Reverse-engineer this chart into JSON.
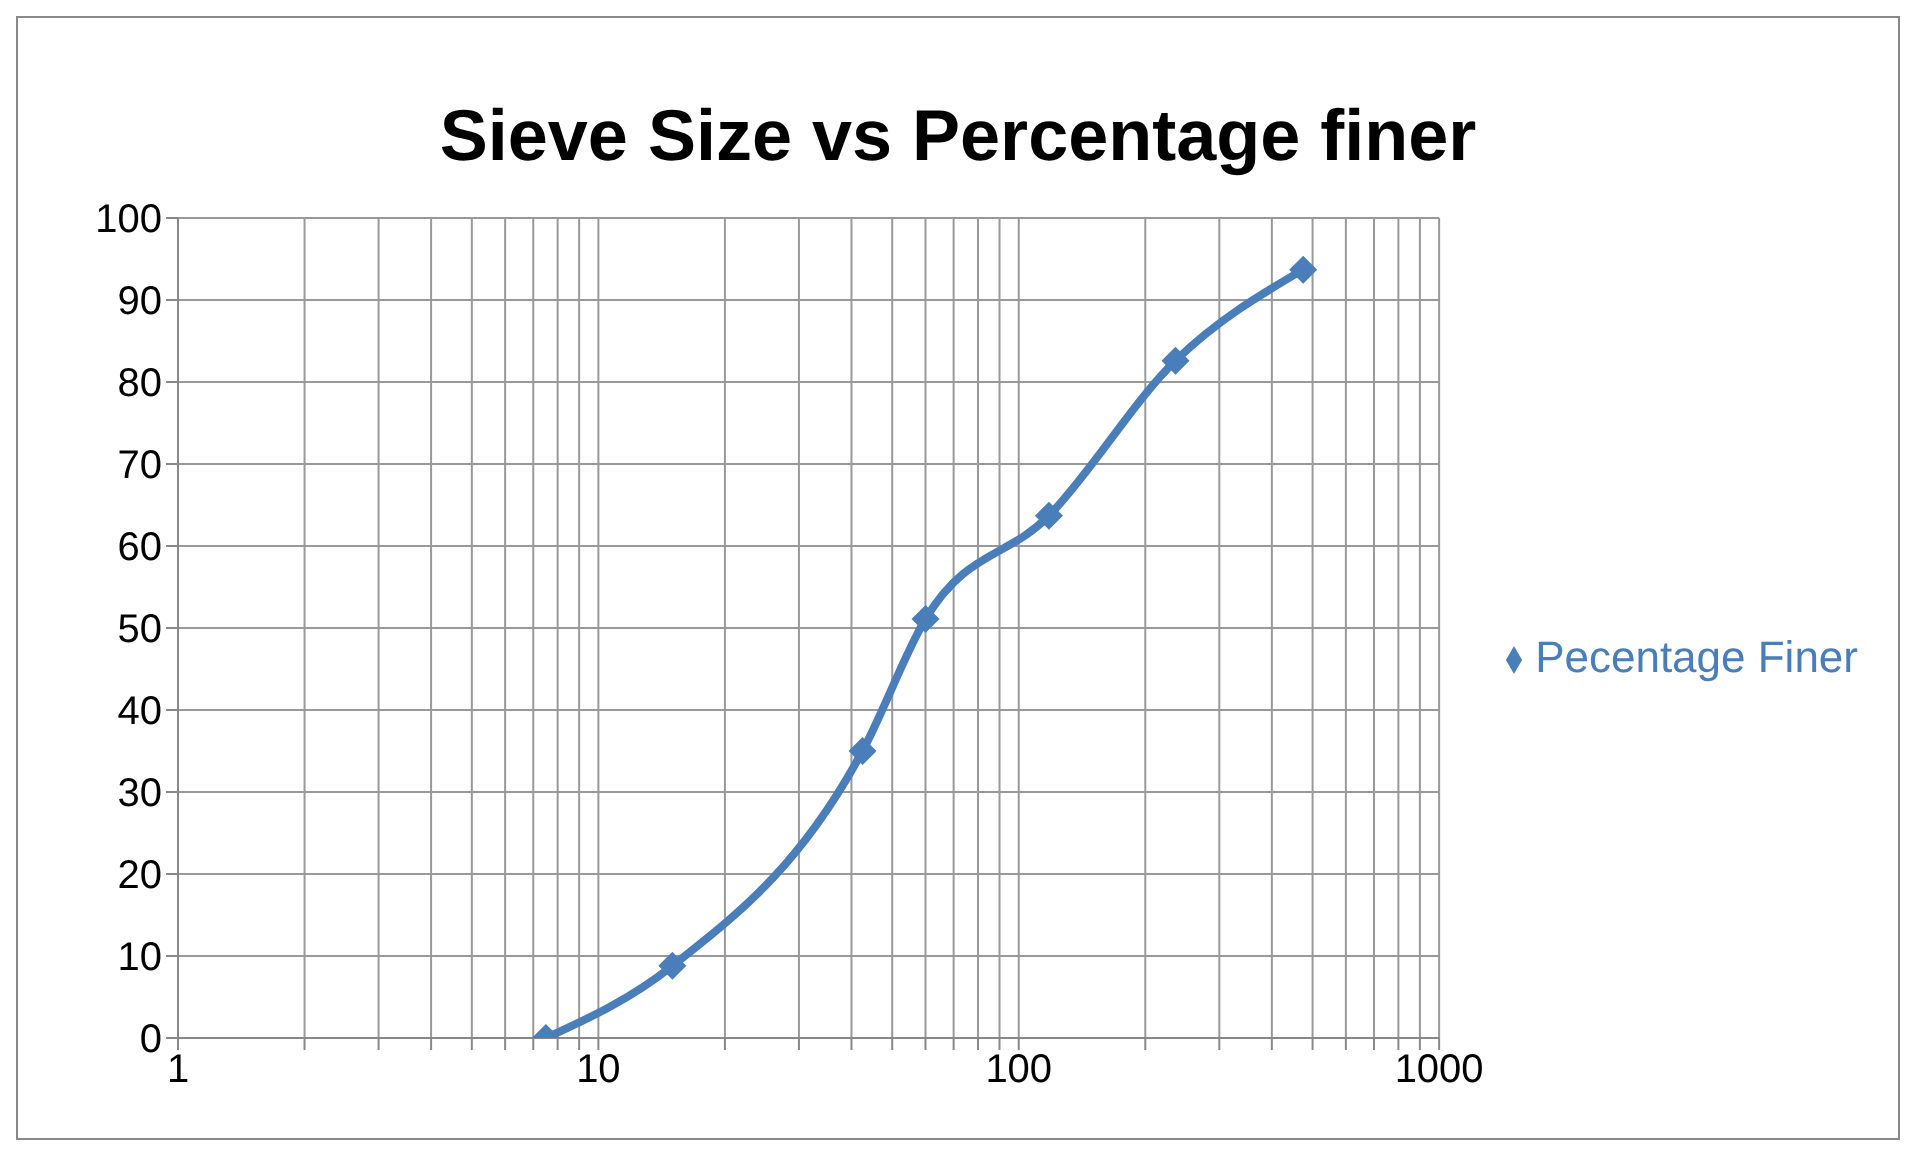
{
  "chart_data": {
    "type": "line",
    "title": "Sieve Size vs Percentage finer",
    "x": [
      7.5,
      15,
      42.5,
      60,
      118,
      236,
      475
    ],
    "series": [
      {
        "name": "Pecentage Finer",
        "color": "#4a7ebb",
        "values": [
          0,
          8.8,
          35,
          51.1,
          63.7,
          82.6,
          93.7
        ]
      }
    ],
    "log": "x",
    "xlim": [
      1,
      1000
    ],
    "xticks": [
      1,
      {
        "value": 2,
        "label": null
      },
      {
        "value": 3,
        "label": null
      },
      {
        "value": 4,
        "label": null
      },
      {
        "value": 5,
        "label": null
      },
      {
        "value": 6,
        "label": null
      },
      {
        "value": 7,
        "label": null
      },
      {
        "value": 8,
        "label": null
      },
      {
        "value": 9,
        "label": null
      },
      10,
      {
        "value": 20,
        "label": null
      },
      {
        "value": 30,
        "label": null
      },
      {
        "value": 40,
        "label": null
      },
      {
        "value": 50,
        "label": null
      },
      {
        "value": 60,
        "label": null
      },
      {
        "value": 70,
        "label": null
      },
      {
        "value": 80,
        "label": null
      },
      {
        "value": 90,
        "label": null
      },
      100,
      {
        "value": 200,
        "label": null
      },
      {
        "value": 300,
        "label": null
      },
      {
        "value": 400,
        "label": null
      },
      {
        "value": 500,
        "label": null
      },
      {
        "value": 600,
        "label": null
      },
      {
        "value": 700,
        "label": null
      },
      {
        "value": 800,
        "label": null
      },
      {
        "value": 900,
        "label": null
      },
      1000
    ],
    "ylim": [
      0,
      100
    ],
    "yticks": [
      0,
      10,
      20,
      30,
      40,
      50,
      60,
      70,
      80,
      90,
      100
    ],
    "grid": true,
    "legend": "right",
    "marker": "diamond",
    "line_style": "solid"
  }
}
